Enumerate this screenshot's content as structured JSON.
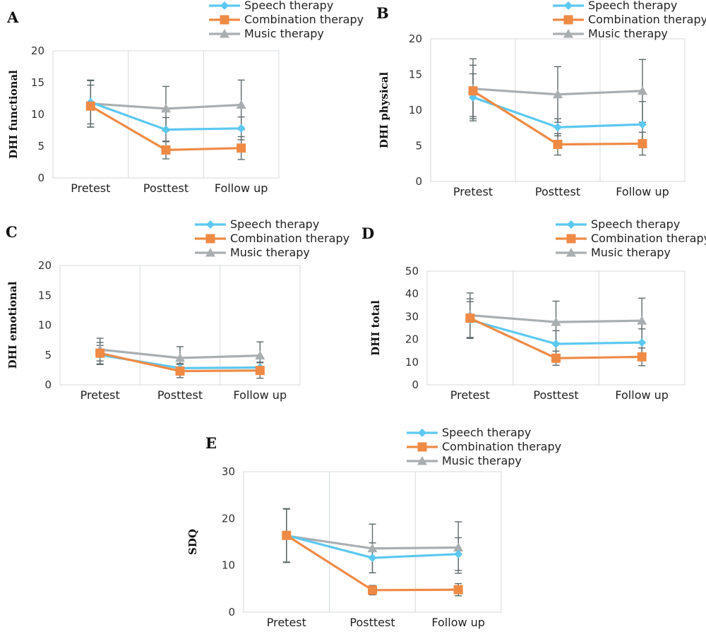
{
  "legend": {
    "speech": "Speech therapy",
    "combination": "Combination therapy",
    "music": "Music therapy"
  },
  "colors": {
    "speech": "#5cc8f0",
    "combination": "#ef8a45",
    "music": "#a9aeb1",
    "errorbar": "#5f6b6b",
    "grid": "#d6dadc"
  },
  "chart_data": [
    {
      "panel": "A",
      "type": "line",
      "ylabel": "DHI functional",
      "categories": [
        "Pretest",
        "Posttest",
        "Follow up"
      ],
      "ylim": [
        0,
        20
      ],
      "yticks": [
        0,
        5,
        10,
        15,
        20
      ],
      "series": [
        {
          "name": "Speech therapy",
          "values": [
            11.9,
            7.6,
            7.8
          ],
          "errors": [
            3.4,
            1.9,
            1.8
          ]
        },
        {
          "name": "Combination therapy",
          "values": [
            11.3,
            4.4,
            4.7
          ],
          "errors": [
            3.3,
            1.4,
            1.8
          ]
        },
        {
          "name": "Music therapy",
          "values": [
            11.7,
            10.9,
            11.5
          ],
          "errors": [
            3.7,
            3.5,
            3.9
          ]
        }
      ]
    },
    {
      "panel": "B",
      "type": "line",
      "ylabel": "DHI physical",
      "categories": [
        "Pretest",
        "Posttest",
        "Follow up"
      ],
      "ylim": [
        0,
        20
      ],
      "yticks": [
        0,
        5,
        10,
        15,
        20
      ],
      "series": [
        {
          "name": "Speech therapy",
          "values": [
            11.8,
            7.6,
            8.0
          ],
          "errors": [
            3.3,
            1.2,
            3.2
          ]
        },
        {
          "name": "Combination therapy",
          "values": [
            12.7,
            5.2,
            5.3
          ],
          "errors": [
            3.6,
            1.5,
            1.6
          ]
        },
        {
          "name": "Music therapy",
          "values": [
            13.0,
            12.2,
            12.7
          ],
          "errors": [
            4.2,
            3.9,
            4.4
          ]
        }
      ]
    },
    {
      "panel": "C",
      "type": "line",
      "ylabel": "DHI emotional",
      "categories": [
        "Pretest",
        "Posttest",
        "Follow up"
      ],
      "ylim": [
        0,
        20
      ],
      "yticks": [
        0,
        5,
        10,
        15,
        20
      ],
      "series": [
        {
          "name": "Speech therapy",
          "values": [
            5.0,
            2.8,
            2.9
          ],
          "errors": [
            1.6,
            0.8,
            0.9
          ]
        },
        {
          "name": "Combination therapy",
          "values": [
            5.3,
            2.3,
            2.4
          ],
          "errors": [
            1.8,
            1.1,
            1.3
          ]
        },
        {
          "name": "Music therapy",
          "values": [
            5.9,
            4.5,
            4.9
          ],
          "errors": [
            1.9,
            1.9,
            2.3
          ]
        }
      ]
    },
    {
      "panel": "D",
      "type": "line",
      "ylabel": "DHI total",
      "categories": [
        "Pretest",
        "Posttest",
        "Follow up"
      ],
      "ylim": [
        0,
        50
      ],
      "yticks": [
        0,
        10,
        20,
        30,
        40,
        50
      ],
      "series": [
        {
          "name": "Speech therapy",
          "values": [
            28.5,
            18.0,
            18.6
          ],
          "errors": [
            8.1,
            5.8,
            6.0
          ]
        },
        {
          "name": "Combination therapy",
          "values": [
            29.3,
            11.7,
            12.3
          ],
          "errors": [
            8.5,
            3.1,
            3.9
          ]
        },
        {
          "name": "Music therapy",
          "values": [
            30.6,
            27.6,
            28.2
          ],
          "errors": [
            9.8,
            9.2,
            9.9
          ]
        }
      ]
    },
    {
      "panel": "E",
      "type": "line",
      "ylabel": "SDQ",
      "categories": [
        "Pretest",
        "Posttest",
        "Follow up"
      ],
      "ylim": [
        0,
        30
      ],
      "yticks": [
        0,
        10,
        20,
        30
      ],
      "series": [
        {
          "name": "Speech therapy",
          "values": [
            16.4,
            11.6,
            12.4
          ],
          "errors": [
            5.7,
            3.2,
            3.5
          ]
        },
        {
          "name": "Combination therapy",
          "values": [
            16.4,
            4.7,
            4.8
          ],
          "errors": [
            5.7,
            1.0,
            1.3
          ]
        },
        {
          "name": "Music therapy",
          "values": [
            16.3,
            13.6,
            13.8
          ],
          "errors": [
            5.7,
            5.2,
            5.5
          ]
        }
      ]
    }
  ]
}
